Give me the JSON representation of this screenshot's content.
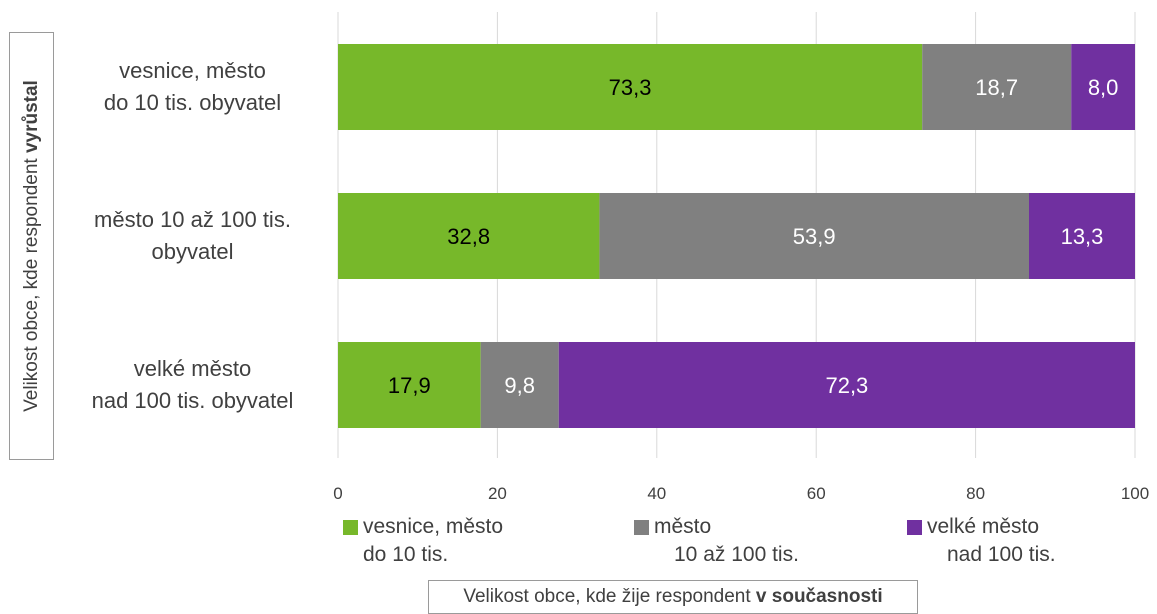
{
  "chart_data": {
    "type": "bar",
    "orientation": "horizontal",
    "stacked": true,
    "categories": [
      [
        "vesnice, město",
        "do 10 tis. obyvatel"
      ],
      [
        "město 10 až 100 tis.",
        "obyvatel"
      ],
      [
        "velké město",
        "nad 100 tis. obyvatel"
      ]
    ],
    "series": [
      {
        "name": [
          "vesnice, město",
          "do 10 tis."
        ],
        "color": "#77b82a",
        "label_color": "#000000",
        "values": [
          73.3,
          32.8,
          17.9
        ],
        "labels": [
          "73,3",
          "32,8",
          "17,9"
        ]
      },
      {
        "name": [
          "město",
          "10 až 100 tis."
        ],
        "color": "#808080",
        "label_color": "#ffffff",
        "values": [
          18.7,
          53.9,
          9.8
        ],
        "labels": [
          "18,7",
          "53,9",
          "9,8"
        ]
      },
      {
        "name": [
          "velké město",
          "nad 100 tis."
        ],
        "color": "#7030a0",
        "label_color": "#ffffff",
        "values": [
          8.0,
          13.3,
          72.3
        ],
        "labels": [
          "8,0",
          "13,3",
          "72,3"
        ]
      }
    ],
    "xlim": [
      0,
      100
    ],
    "xticks": [
      0,
      20,
      40,
      60,
      80,
      100
    ],
    "grid": true,
    "legend_position": "bottom",
    "ylabel_prefix": "Velikost obce, kde respondent ",
    "ylabel_bold": "vyrůstal",
    "xlabel_prefix": "Velikost obce, kde žije respondent ",
    "xlabel_bold": "v současnosti"
  }
}
